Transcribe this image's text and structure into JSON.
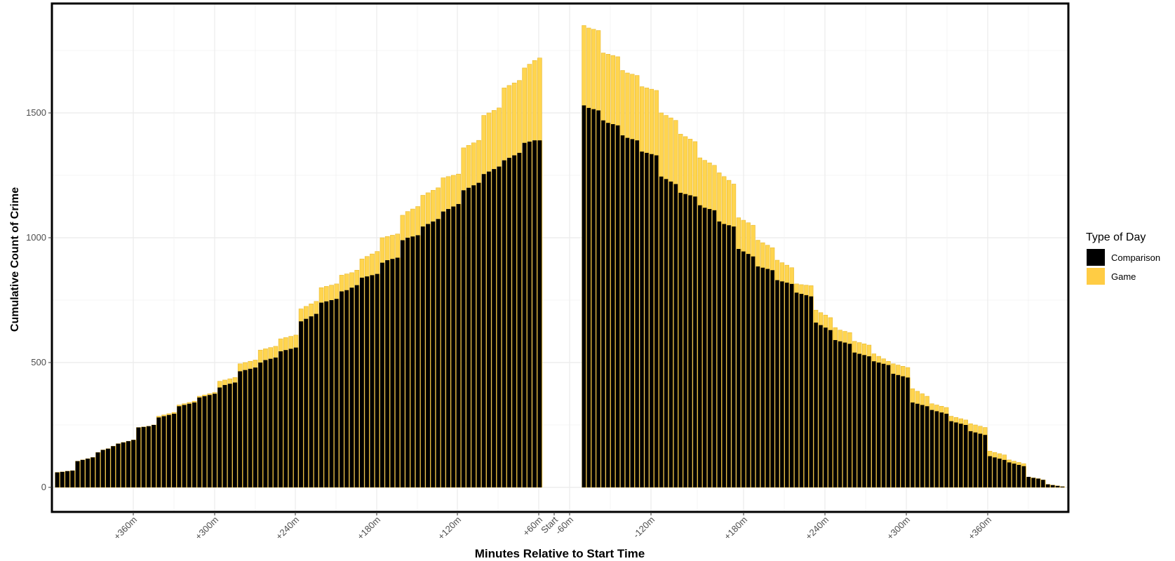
{
  "chart_data": {
    "type": "bar",
    "title": "",
    "xlabel": "Minutes Relative to Start Time",
    "ylabel": "Cumulative Count of Crime",
    "ylim": [
      -80,
      1940
    ],
    "yticks": [
      0,
      500,
      1000,
      1500
    ],
    "grid": true,
    "legend": {
      "title": "Type of Day",
      "placement": "right",
      "entries": [
        {
          "name": "Comparison",
          "color": "#000000"
        },
        {
          "name": "Game",
          "color": "#FFCC44"
        }
      ]
    },
    "bar_colors": {
      "comparison_fill": "#000000",
      "game_fill": "#FFD54F",
      "outline": "#E8B830"
    },
    "x_tick_labels": [
      "+360m",
      "+300m",
      "+240m",
      "+180m",
      "+120m",
      "+60m",
      "Start",
      "-60m",
      "-120m",
      "+180m",
      "+240m",
      "+300m",
      "+360m"
    ],
    "bin_minutes": 5,
    "before_start": {
      "description_minutes": "minutes before start, from -420 to -5",
      "series": [
        {
          "name": "Comparison",
          "values": [
            60,
            62,
            65,
            67,
            105,
            110,
            115,
            120,
            140,
            150,
            155,
            165,
            175,
            180,
            185,
            190,
            240,
            242,
            245,
            250,
            280,
            285,
            290,
            295,
            325,
            330,
            335,
            340,
            360,
            365,
            370,
            375,
            400,
            410,
            415,
            420,
            465,
            470,
            475,
            480,
            500,
            510,
            515,
            520,
            545,
            550,
            555,
            560,
            665,
            675,
            685,
            695,
            740,
            745,
            750,
            755,
            785,
            790,
            800,
            810,
            840,
            845,
            850,
            855,
            900,
            910,
            915,
            920,
            990,
            1000,
            1005,
            1010,
            1045,
            1055,
            1065,
            1075,
            1105,
            1115,
            1125,
            1135,
            1190,
            1200,
            1210,
            1220,
            1255,
            1265,
            1275,
            1285,
            1310,
            1320,
            1330,
            1340,
            1380,
            1385,
            1390,
            1390
          ]
        },
        {
          "name": "Game",
          "values": [
            60,
            62,
            65,
            67,
            105,
            110,
            115,
            120,
            140,
            150,
            155,
            165,
            175,
            180,
            185,
            190,
            240,
            242,
            245,
            250,
            285,
            290,
            295,
            300,
            330,
            335,
            340,
            345,
            365,
            370,
            375,
            380,
            425,
            430,
            435,
            440,
            495,
            500,
            505,
            510,
            550,
            555,
            560,
            565,
            595,
            600,
            605,
            610,
            715,
            725,
            735,
            745,
            800,
            805,
            810,
            815,
            850,
            855,
            860,
            870,
            915,
            925,
            935,
            945,
            1000,
            1005,
            1010,
            1015,
            1090,
            1105,
            1115,
            1125,
            1170,
            1180,
            1190,
            1200,
            1240,
            1245,
            1250,
            1255,
            1360,
            1370,
            1380,
            1390,
            1490,
            1500,
            1510,
            1520,
            1600,
            1610,
            1620,
            1630,
            1680,
            1695,
            1710,
            1720
          ]
        }
      ]
    },
    "after_start": {
      "description_minutes": "minutes after start, from 0 to 415",
      "series": [
        {
          "name": "Comparison",
          "values": [
            1530,
            1520,
            1515,
            1510,
            1470,
            1460,
            1455,
            1450,
            1410,
            1400,
            1395,
            1390,
            1345,
            1340,
            1335,
            1330,
            1245,
            1235,
            1225,
            1215,
            1180,
            1175,
            1170,
            1165,
            1130,
            1120,
            1115,
            1110,
            1065,
            1055,
            1050,
            1045,
            955,
            945,
            935,
            925,
            885,
            880,
            875,
            870,
            830,
            825,
            820,
            815,
            780,
            775,
            770,
            765,
            660,
            650,
            640,
            630,
            590,
            585,
            580,
            575,
            540,
            535,
            530,
            525,
            505,
            500,
            495,
            490,
            455,
            450,
            445,
            440,
            340,
            335,
            330,
            325,
            310,
            305,
            300,
            295,
            265,
            260,
            255,
            250,
            225,
            220,
            215,
            210,
            125,
            120,
            115,
            110,
            100,
            95,
            90,
            85,
            42,
            38,
            35,
            30,
            12,
            9,
            6,
            3
          ]
        },
        {
          "name": "Game",
          "values": [
            1850,
            1840,
            1835,
            1830,
            1740,
            1735,
            1730,
            1725,
            1670,
            1660,
            1655,
            1650,
            1605,
            1600,
            1595,
            1590,
            1500,
            1490,
            1480,
            1470,
            1415,
            1405,
            1395,
            1385,
            1320,
            1310,
            1300,
            1290,
            1260,
            1245,
            1230,
            1215,
            1080,
            1070,
            1060,
            1050,
            990,
            980,
            970,
            960,
            910,
            900,
            890,
            880,
            815,
            812,
            810,
            808,
            710,
            700,
            690,
            680,
            640,
            630,
            625,
            620,
            585,
            580,
            575,
            570,
            535,
            525,
            515,
            505,
            495,
            490,
            485,
            480,
            395,
            385,
            375,
            365,
            335,
            330,
            325,
            320,
            285,
            280,
            275,
            270,
            255,
            250,
            245,
            240,
            145,
            140,
            135,
            130,
            110,
            105,
            100,
            95,
            40,
            38,
            35,
            30,
            12,
            9,
            6,
            3
          ]
        }
      ]
    }
  }
}
